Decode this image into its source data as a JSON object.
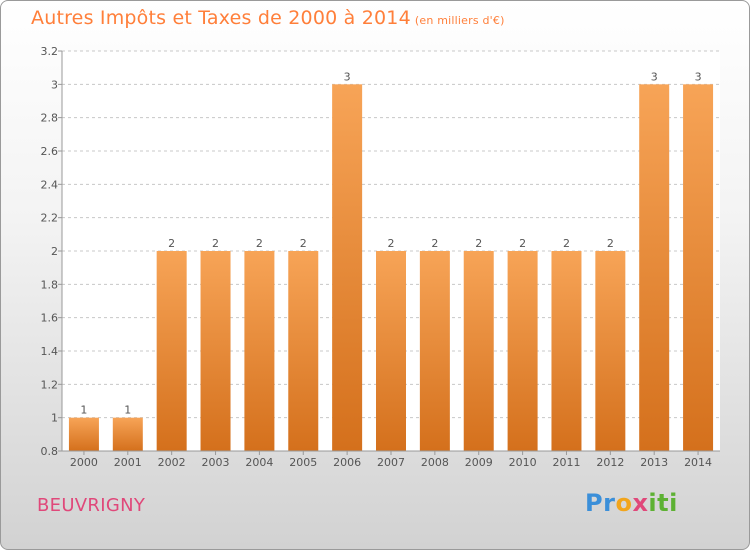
{
  "title": {
    "main": "Autres Impôts et Taxes de 2000 à 2014",
    "unit": "(en milliers d'€)"
  },
  "commune": "BEUVRIGNY",
  "logo": {
    "text": "Proxiti",
    "parts": [
      "Pr",
      "o",
      "x",
      "iti"
    ]
  },
  "colors": {
    "title": "#ff7f3a",
    "bar_light": "#f7a457",
    "bar_dark": "#d4701c",
    "commune": "#e0487a",
    "grid": "#c8c8c8"
  },
  "chart_data": {
    "type": "bar",
    "categories": [
      "2000",
      "2001",
      "2002",
      "2003",
      "2004",
      "2005",
      "2006",
      "2007",
      "2008",
      "2009",
      "2010",
      "2011",
      "2012",
      "2013",
      "2014"
    ],
    "values": [
      1,
      1,
      2,
      2,
      2,
      2,
      3,
      2,
      2,
      2,
      2,
      2,
      2,
      3,
      3
    ],
    "data_labels": [
      "1",
      "1",
      "2",
      "2",
      "2",
      "2",
      "3",
      "2",
      "2",
      "2",
      "2",
      "2",
      "2",
      "3",
      "3"
    ],
    "ylim": [
      0.8,
      3.2
    ],
    "yticks": [
      0.8,
      1,
      1.2,
      1.4,
      1.6,
      1.8,
      2,
      2.2,
      2.4,
      2.6,
      2.8,
      3,
      3.2
    ],
    "ytick_labels": [
      "0.8",
      "1",
      "1.2",
      "1.4",
      "1.6",
      "1.8",
      "2",
      "2.2",
      "2.4",
      "2.6",
      "2.8",
      "3",
      "3.2"
    ],
    "grid": true
  }
}
